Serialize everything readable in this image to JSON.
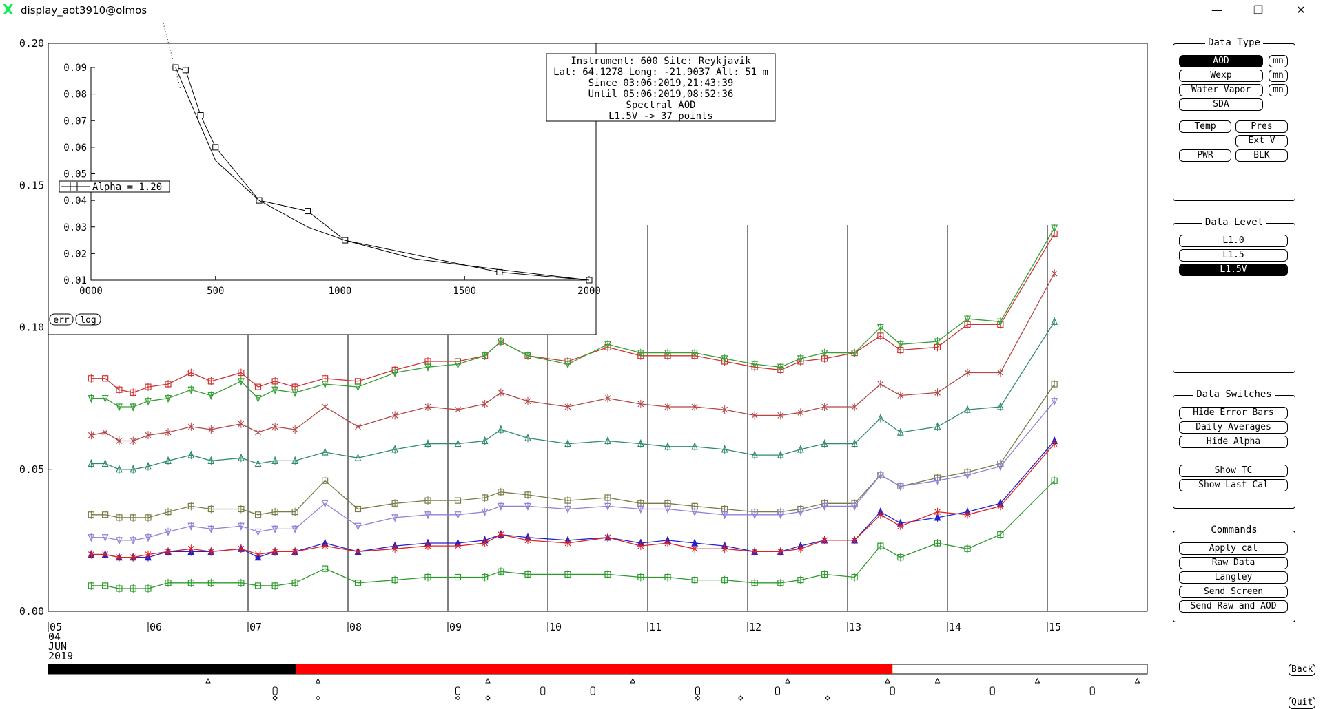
{
  "window": {
    "title": "display_aot3910@olmos",
    "minimize": "—",
    "restore": "❐",
    "close": "✕"
  },
  "info_box": [
    "Instrument: 600 Site: Reykjavik",
    "Lat: 64.1278 Long: -21.9037 Alt: 51 m",
    "Since 03:06:2019,21:43:39",
    "Until 05:06:2019,08:52:36",
    "Spectral AOD",
    "L1.5V -> 37 points"
  ],
  "alpha_label": "Alpha = 1.20",
  "inset_buttons": {
    "err": "err",
    "log": "log"
  },
  "date_labels": {
    "year_mark": "05",
    "day": "04",
    "month": "JUN",
    "year": "2019"
  },
  "timeline_colors": {
    "black": "#000000",
    "red": "#ff0000",
    "white": "#ffffff"
  },
  "panels": {
    "data_type": {
      "title": "Data Type",
      "aod": "AOD",
      "wexp": "Wexp",
      "water_vapor": "Water Vapor",
      "sda": "SDA",
      "mn": "mn",
      "temp": "Temp",
      "pres": "Pres",
      "ext_v": "Ext V",
      "pwr": "PWR",
      "blk": "BLK"
    },
    "data_level": {
      "title": "Data Level",
      "levels": [
        "L1.0",
        "L1.5",
        "L1.5V"
      ],
      "selected": "L1.5V"
    },
    "data_switches": {
      "title": "Data Switches",
      "hide_error_bars": "Hide Error Bars",
      "daily_averages": "Daily Averages",
      "hide_alpha": "Hide Alpha",
      "show_tc": "Show TC",
      "show_last_cal": "Show Last Cal"
    },
    "commands": {
      "title": "Commands",
      "apply_cal": "Apply cal",
      "raw_data": "Raw Data",
      "langley": "Langley",
      "send_screen": "Send Screen",
      "send_raw_aod": "Send Raw and AOD"
    }
  },
  "back": "Back",
  "quit": "Quit",
  "chart_data": [
    {
      "type": "line",
      "title": "",
      "xlabel": "",
      "ylabel": "",
      "ylim": [
        0.0,
        0.2
      ],
      "xlim": [
        5,
        16
      ],
      "yticks": [
        "0.00",
        "0.05",
        "0.10",
        "0.15",
        "0.20"
      ],
      "xticks": [
        "05",
        "06",
        "07",
        "08",
        "09",
        "10",
        "11",
        "12",
        "13",
        "14",
        "15"
      ],
      "grid": false,
      "x": [
        5.43,
        5.57,
        5.71,
        5.85,
        6.0,
        6.2,
        6.43,
        6.63,
        6.93,
        7.1,
        7.27,
        7.47,
        7.77,
        8.1,
        8.47,
        8.8,
        9.1,
        9.37,
        9.53,
        9.8,
        10.2,
        10.6,
        10.93,
        11.2,
        11.47,
        11.77,
        12.07,
        12.33,
        12.53,
        12.77,
        13.07,
        13.33,
        13.53,
        13.9,
        14.2,
        14.53,
        15.07
      ],
      "series": [
        {
          "color": "#cc3333",
          "marker": "square",
          "values": [
            0.082,
            0.082,
            0.078,
            0.077,
            0.079,
            0.08,
            0.084,
            0.081,
            0.084,
            0.079,
            0.081,
            0.079,
            0.082,
            0.081,
            0.085,
            0.088,
            0.088,
            0.09,
            0.095,
            0.09,
            0.088,
            0.093,
            0.09,
            0.09,
            0.09,
            0.088,
            0.086,
            0.085,
            0.088,
            0.089,
            0.091,
            0.097,
            0.092,
            0.093,
            0.101,
            0.101,
            0.133
          ]
        },
        {
          "color": "#33a033",
          "marker": "triangle-down",
          "values": [
            0.075,
            0.075,
            0.072,
            0.072,
            0.074,
            0.075,
            0.078,
            0.076,
            0.081,
            0.075,
            0.078,
            0.077,
            0.08,
            0.079,
            0.084,
            0.086,
            0.087,
            0.09,
            0.095,
            0.09,
            0.087,
            0.094,
            0.091,
            0.091,
            0.091,
            0.089,
            0.087,
            0.086,
            0.089,
            0.091,
            0.091,
            0.1,
            0.094,
            0.095,
            0.103,
            0.102,
            0.135
          ]
        },
        {
          "color": "#b44646",
          "marker": "x",
          "values": [
            0.062,
            0.063,
            0.06,
            0.06,
            0.062,
            0.063,
            0.065,
            0.064,
            0.066,
            0.063,
            0.065,
            0.064,
            0.072,
            0.065,
            0.069,
            0.072,
            0.071,
            0.073,
            0.077,
            0.074,
            0.072,
            0.075,
            0.073,
            0.072,
            0.072,
            0.071,
            0.069,
            0.069,
            0.07,
            0.072,
            0.072,
            0.08,
            0.076,
            0.077,
            0.084,
            0.084,
            0.119
          ]
        },
        {
          "color": "#2e8a6e",
          "marker": "triangle",
          "values": [
            0.052,
            0.052,
            0.05,
            0.05,
            0.051,
            0.053,
            0.055,
            0.053,
            0.054,
            0.052,
            0.053,
            0.053,
            0.056,
            0.054,
            0.057,
            0.059,
            0.059,
            0.06,
            0.064,
            0.061,
            0.059,
            0.06,
            0.059,
            0.058,
            0.058,
            0.057,
            0.055,
            0.055,
            0.057,
            0.059,
            0.059,
            0.068,
            0.063,
            0.065,
            0.071,
            0.072,
            0.102
          ]
        },
        {
          "color": "#7a7a46",
          "marker": "square",
          "values": [
            0.034,
            0.034,
            0.033,
            0.033,
            0.033,
            0.035,
            0.037,
            0.036,
            0.036,
            0.034,
            0.035,
            0.035,
            0.046,
            0.036,
            0.038,
            0.039,
            0.039,
            0.04,
            0.042,
            0.041,
            0.039,
            0.04,
            0.038,
            0.038,
            0.037,
            0.036,
            0.035,
            0.035,
            0.036,
            0.038,
            0.038,
            0.048,
            0.044,
            0.047,
            0.049,
            0.052,
            0.08
          ]
        },
        {
          "color": "#9080d8",
          "marker": "triangle-down",
          "values": [
            0.026,
            0.026,
            0.025,
            0.025,
            0.026,
            0.028,
            0.03,
            0.029,
            0.03,
            0.028,
            0.029,
            0.029,
            0.038,
            0.03,
            0.033,
            0.034,
            0.034,
            0.035,
            0.037,
            0.037,
            0.036,
            0.037,
            0.036,
            0.036,
            0.035,
            0.034,
            0.034,
            0.034,
            0.035,
            0.037,
            0.037,
            0.048,
            0.044,
            0.046,
            0.048,
            0.051,
            0.074
          ]
        },
        {
          "color": "#2020d0",
          "marker": "triangle",
          "values": [
            0.02,
            0.02,
            0.019,
            0.019,
            0.019,
            0.021,
            0.021,
            0.021,
            0.022,
            0.019,
            0.021,
            0.021,
            0.024,
            0.021,
            0.023,
            0.024,
            0.024,
            0.025,
            0.027,
            0.026,
            0.025,
            0.026,
            0.024,
            0.025,
            0.024,
            0.023,
            0.021,
            0.021,
            0.023,
            0.025,
            0.025,
            0.035,
            0.031,
            0.033,
            0.035,
            0.038,
            0.06
          ]
        },
        {
          "color": "#e02020",
          "marker": "x",
          "values": [
            0.02,
            0.02,
            0.019,
            0.019,
            0.02,
            0.021,
            0.022,
            0.021,
            0.022,
            0.02,
            0.021,
            0.021,
            0.023,
            0.021,
            0.022,
            0.023,
            0.023,
            0.024,
            0.027,
            0.025,
            0.024,
            0.026,
            0.023,
            0.024,
            0.022,
            0.022,
            0.021,
            0.021,
            0.022,
            0.025,
            0.025,
            0.034,
            0.03,
            0.035,
            0.034,
            0.037,
            0.059
          ]
        },
        {
          "color": "#2a9a2a",
          "marker": "square",
          "values": [
            0.009,
            0.009,
            0.008,
            0.008,
            0.008,
            0.01,
            0.01,
            0.01,
            0.01,
            0.009,
            0.009,
            0.01,
            0.015,
            0.01,
            0.011,
            0.012,
            0.012,
            0.012,
            0.014,
            0.013,
            0.013,
            0.013,
            0.012,
            0.012,
            0.011,
            0.011,
            0.01,
            0.01,
            0.011,
            0.013,
            0.012,
            0.023,
            0.019,
            0.024,
            0.022,
            0.027,
            0.046
          ]
        }
      ]
    },
    {
      "type": "line",
      "title": "",
      "xlabel": "",
      "ylabel": "",
      "xlim": [
        0,
        2000
      ],
      "ylim": [
        0.01,
        0.09
      ],
      "xticks": [
        "0000",
        "500",
        "1000",
        "1500",
        "2000"
      ],
      "yticks": [
        "0.01",
        "0.02",
        "0.03",
        "0.04",
        "0.05",
        "0.06",
        "0.07",
        "0.08",
        "0.09"
      ],
      "series": [
        {
          "marker": "square",
          "x": [
            340,
            380,
            440,
            500,
            675,
            870,
            1020,
            1640,
            2000
          ],
          "values": [
            0.09,
            0.089,
            0.072,
            0.06,
            0.04,
            0.036,
            0.025,
            0.013,
            0.01
          ]
        },
        {
          "marker": "none",
          "x": [
            340,
            440,
            500,
            675,
            870,
            1020,
            1300,
            1640,
            2000
          ],
          "values": [
            0.09,
            0.068,
            0.055,
            0.04,
            0.03,
            0.025,
            0.018,
            0.014,
            0.01
          ]
        }
      ]
    }
  ]
}
